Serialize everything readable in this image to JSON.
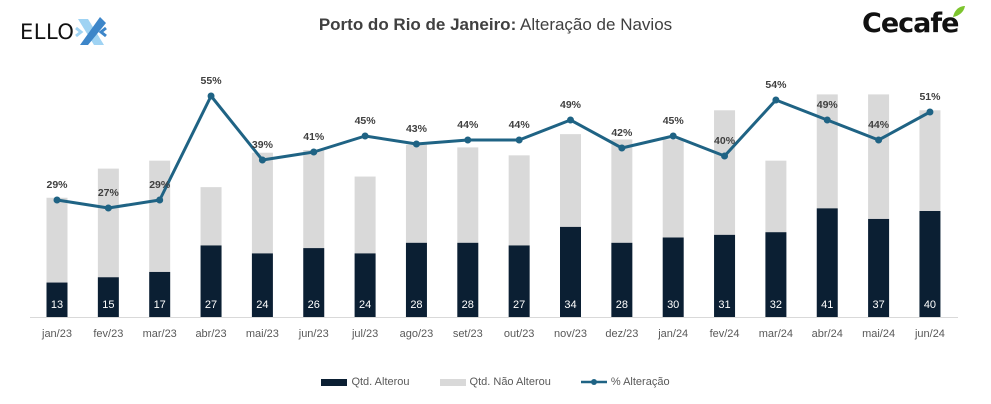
{
  "header": {
    "title_bold": "Porto do Rio de Janeiro:",
    "title_rest": " Alteração de Navios",
    "left_logo": "ELLO",
    "right_logo": "Cecafe"
  },
  "colors": {
    "alterou": "#0b1f33",
    "nao_alterou": "#d9d9d9",
    "line": "#1f6384",
    "axis": "#d9d9d9"
  },
  "legend": [
    {
      "key": "alterou",
      "label": "Qtd. Alterou"
    },
    {
      "key": "nao_alterou",
      "label": "Qtd. Não Alterou"
    },
    {
      "key": "pct",
      "label": "% Alteração"
    }
  ],
  "chart_data": {
    "type": "bar",
    "stacked": true,
    "title": "Porto do Rio de Janeiro: Alteração de Navios",
    "categories": [
      "jan/23",
      "fev/23",
      "mar/23",
      "abr/23",
      "mai/23",
      "jun/23",
      "jul/23",
      "ago/23",
      "set/23",
      "out/23",
      "nov/23",
      "dez/23",
      "jan/24",
      "fev/24",
      "mar/24",
      "abr/24",
      "mai/24",
      "jun/24"
    ],
    "series": [
      {
        "name": "Qtd. Alterou",
        "type": "bar",
        "values": [
          13,
          15,
          17,
          27,
          24,
          26,
          24,
          28,
          28,
          27,
          34,
          28,
          30,
          31,
          32,
          41,
          37,
          40
        ]
      },
      {
        "name": "Qtd. Não Alterou",
        "type": "bar",
        "values": [
          32,
          41,
          42,
          22,
          38,
          37,
          29,
          37,
          36,
          34,
          35,
          39,
          37,
          47,
          27,
          43,
          47,
          38
        ]
      },
      {
        "name": "% Alteração",
        "type": "line",
        "axis": "secondary",
        "values": [
          29,
          27,
          29,
          55,
          39,
          41,
          45,
          43,
          44,
          44,
          49,
          42,
          45,
          40,
          54,
          49,
          44,
          51
        ],
        "labels": [
          "29%",
          "27%",
          "29%",
          "55%",
          "39%",
          "41%",
          "45%",
          "43%",
          "44%",
          "44%",
          "49%",
          "42%",
          "45%",
          "40%",
          "54%",
          "49%",
          "44%",
          "51%"
        ]
      }
    ],
    "xlabel": "",
    "ylabel": "",
    "ylim": [
      0,
      90
    ],
    "y2lim": [
      0,
      60
    ],
    "grid": false,
    "legend_position": "bottom"
  }
}
